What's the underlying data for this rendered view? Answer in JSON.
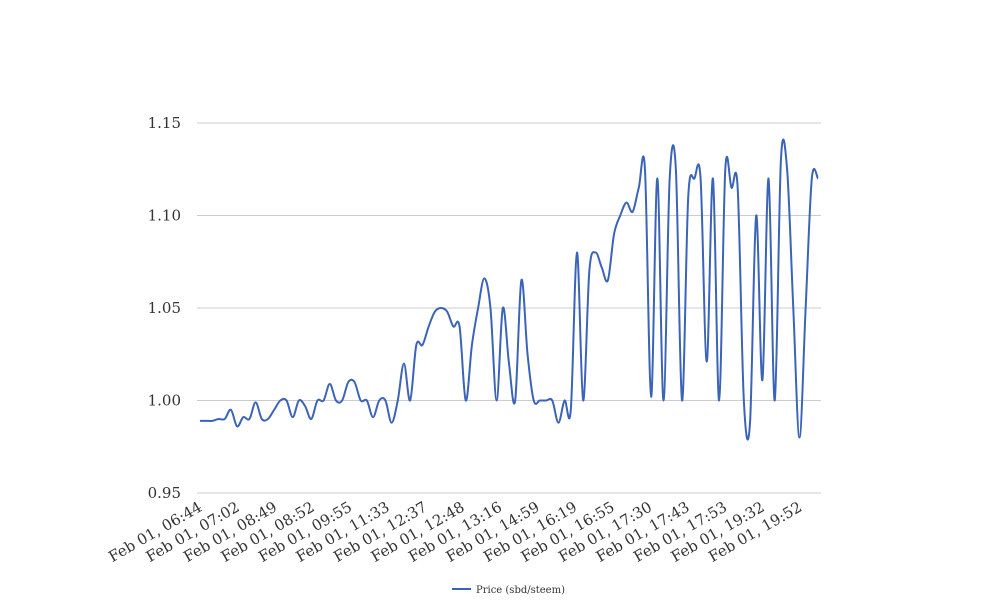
{
  "chart_data": {
    "type": "line",
    "title": "",
    "xlabel": "",
    "ylabel": "",
    "ylim": [
      0.95,
      1.15
    ],
    "y_ticks": [
      "0.95",
      "1.00",
      "1.05",
      "1.10",
      "1.15"
    ],
    "x_tick_labels": [
      "Feb 01, 06:44",
      "Feb 01, 07:02",
      "Feb 01, 08:49",
      "Feb 01, 08:52",
      "Feb 01, 09:55",
      "Feb 01, 11:33",
      "Feb 01, 12:37",
      "Feb 01, 12:48",
      "Feb 01, 13:16",
      "Feb 01, 14:59",
      "Feb 01, 16:19",
      "Feb 01, 16:55",
      "Feb 01, 17:30",
      "Feb 01, 17:43",
      "Feb 01, 17:53",
      "Feb 01, 19:32",
      "Feb 01, 19:52"
    ],
    "grid": true,
    "legend_position": "bottom",
    "series": [
      {
        "name": "Price (sbd/steem)",
        "color": "#3b64b8",
        "values": [
          0.989,
          0.989,
          0.989,
          0.99,
          0.99,
          0.995,
          0.986,
          0.991,
          0.99,
          0.999,
          0.99,
          0.99,
          0.995,
          1.0,
          1.0,
          0.991,
          1.0,
          0.997,
          0.99,
          1.0,
          1.0,
          1.009,
          1.0,
          1.0,
          1.01,
          1.01,
          1.0,
          1.0,
          0.991,
          1.0,
          1.0,
          0.988,
          1.0,
          1.02,
          1.0,
          1.03,
          1.03,
          1.04,
          1.048,
          1.05,
          1.048,
          1.04,
          1.04,
          1.0,
          1.03,
          1.05,
          1.066,
          1.05,
          1.0,
          1.05,
          1.02,
          1.0,
          1.065,
          1.025,
          1.0,
          1.0,
          1.0,
          1.0,
          0.988,
          1.0,
          0.995,
          1.08,
          1.0,
          1.07,
          1.08,
          1.072,
          1.065,
          1.09,
          1.1,
          1.107,
          1.102,
          1.115,
          1.125,
          1.002,
          1.12,
          1.0,
          1.12,
          1.125,
          1.0,
          1.11,
          1.12,
          1.12,
          1.021,
          1.12,
          1.0,
          1.125,
          1.115,
          1.115,
          1.0,
          0.988,
          1.1,
          1.011,
          1.12,
          1.0,
          1.13,
          1.125,
          1.05,
          0.98,
          1.05,
          1.12,
          1.12
        ]
      }
    ]
  }
}
